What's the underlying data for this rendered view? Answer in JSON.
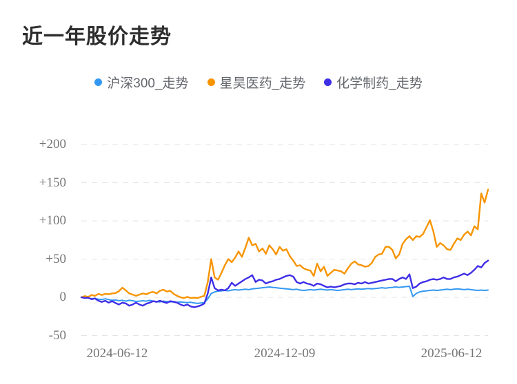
{
  "chart_data": {
    "type": "line",
    "title": "近一年股价走势",
    "legend_position": "top-center",
    "grid": "horizontal dashed",
    "grid_color": "#e4e4e4",
    "x_axis": {
      "tick_labels": [
        "2024-06-12",
        "2024-12-09",
        "2025-06-12"
      ],
      "range": [
        "2024-06-12",
        "2025-06-12"
      ]
    },
    "y_axis": {
      "tick_labels": [
        "+200",
        "+150",
        "+100",
        "+50",
        "0",
        "-50"
      ],
      "tick_values": [
        200,
        150,
        100,
        50,
        0,
        -50
      ],
      "ylim": [
        -50,
        220
      ],
      "unit": "percent_change"
    },
    "series": [
      {
        "name": "沪深300_走势",
        "color": "#3398f1",
        "values": [
          0,
          -0.5,
          -1,
          -2,
          -1.5,
          -2.5,
          -3,
          -2,
          -3,
          -4,
          -3.5,
          -4.5,
          -4,
          -5,
          -4,
          -4.5,
          -5.5,
          -5,
          -4.5,
          -5,
          -4,
          -5,
          -5.5,
          -6,
          -5,
          -5.5,
          -6,
          -5.5,
          -6.5,
          -6,
          -6.5,
          -7,
          -6.5,
          -7.5,
          -8,
          -7.5,
          -7,
          -2,
          5,
          7,
          8,
          8.5,
          9,
          8.5,
          9.5,
          10,
          9.5,
          10,
          10.5,
          10,
          11,
          11.5,
          12,
          12.5,
          13,
          13.5,
          13,
          12.5,
          12,
          11.5,
          11,
          10.5,
          10,
          10.5,
          9.5,
          9,
          9.5,
          10,
          9.5,
          10,
          10.5,
          10,
          9.5,
          10,
          9.5,
          9,
          9.5,
          10,
          10.5,
          10,
          10.5,
          11,
          10.5,
          11,
          11.5,
          11,
          11.5,
          12,
          12.5,
          12,
          12.5,
          13,
          13.5,
          13,
          13.5,
          14,
          14.5,
          1,
          5,
          7,
          8,
          8.5,
          9,
          9.5,
          9,
          9.5,
          10,
          10.5,
          10,
          10.5,
          11,
          10.5,
          10,
          10.5,
          10,
          9.5,
          9,
          9.5,
          9,
          9.5
        ]
      },
      {
        "name": "星昊医药_走势",
        "color": "#f79400",
        "values": [
          0,
          1.5,
          0.5,
          3,
          2,
          4.5,
          3,
          4.5,
          4,
          5,
          5.5,
          8,
          12.5,
          9,
          5,
          3.5,
          2,
          3.5,
          5,
          4,
          6,
          7,
          5,
          8.5,
          10,
          7.5,
          8.5,
          4.5,
          2,
          0,
          -1,
          0.5,
          -1,
          -0.5,
          -1,
          0.5,
          2,
          20,
          50,
          26,
          23,
          32,
          42,
          50,
          46,
          52,
          60,
          53,
          65,
          78,
          68,
          70,
          60,
          64,
          57,
          68,
          63,
          56,
          66,
          61,
          63,
          54,
          48,
          41,
          42,
          38,
          36,
          35,
          28,
          44,
          34,
          40,
          28,
          32,
          36,
          35,
          34,
          31,
          38,
          44,
          47,
          43,
          42,
          40,
          41,
          45,
          53,
          56,
          57,
          66,
          66,
          62,
          51,
          56,
          70,
          76,
          80,
          75,
          80,
          79,
          83,
          92,
          101,
          86,
          66,
          71,
          68,
          63,
          62,
          70,
          77,
          75,
          82,
          86,
          81,
          93,
          89,
          136,
          124,
          141
        ]
      },
      {
        "name": "化学制药_走势",
        "color": "#3e2ee6",
        "values": [
          0,
          -1,
          -0.5,
          -2.5,
          -1.5,
          -4.5,
          -6,
          -4.5,
          -7,
          -5,
          -7.5,
          -9.5,
          -7,
          -8,
          -11,
          -9.5,
          -7,
          -9.5,
          -11,
          -8.5,
          -7,
          -5,
          -6,
          -4.5,
          -6,
          -7.5,
          -5,
          -6,
          -7,
          -9.5,
          -11,
          -9.5,
          -12,
          -13,
          -12,
          -10.5,
          -8,
          5,
          26,
          12,
          9,
          10,
          9,
          12,
          19,
          15,
          18,
          21,
          24,
          26,
          29,
          20,
          23,
          22,
          18,
          20,
          21,
          23,
          24,
          26,
          28,
          29,
          27,
          20,
          18,
          20,
          18,
          17,
          15,
          18,
          17,
          15,
          13,
          14,
          13,
          14,
          15,
          17,
          18,
          18,
          17,
          19,
          18,
          20,
          18,
          19,
          20,
          21,
          22,
          23,
          24,
          24,
          21,
          24,
          26,
          24,
          30,
          12,
          14,
          18,
          20,
          21,
          23,
          24,
          23,
          24,
          26,
          24,
          24,
          26,
          27,
          29,
          31,
          29,
          32,
          36,
          41,
          39,
          45,
          48
        ]
      }
    ]
  }
}
